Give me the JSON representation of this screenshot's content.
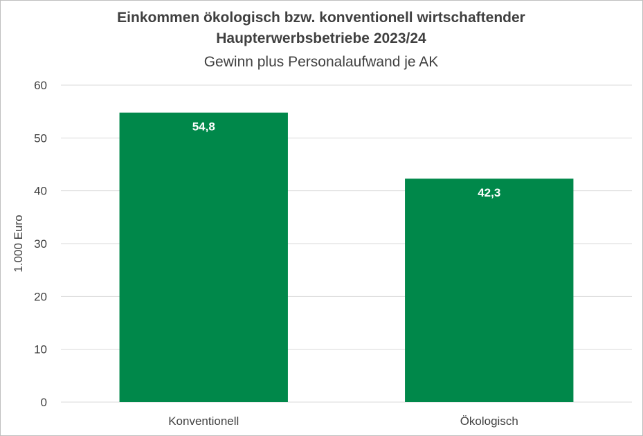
{
  "chart_data": {
    "type": "bar",
    "title_lines": [
      "Einkommen ökologisch bzw. konventionell wirtschaftender",
      "Haupterwerbsbetriebe 2023/24"
    ],
    "subtitle": "Gewinn plus Personalaufwand je AK",
    "ylabel": "1.000 Euro",
    "xlabel": "",
    "categories": [
      "Konventionell",
      "Ökologisch"
    ],
    "values": [
      54.8,
      42.3
    ],
    "data_labels": [
      "54,8",
      "42,3"
    ],
    "ylim": [
      0,
      60
    ],
    "yticks": [
      0,
      10,
      20,
      30,
      40,
      50,
      60
    ],
    "grid": true,
    "legend": "none",
    "colors": {
      "bar": "#00884A",
      "grid": "#d9d9d9",
      "text": "#404040"
    }
  }
}
